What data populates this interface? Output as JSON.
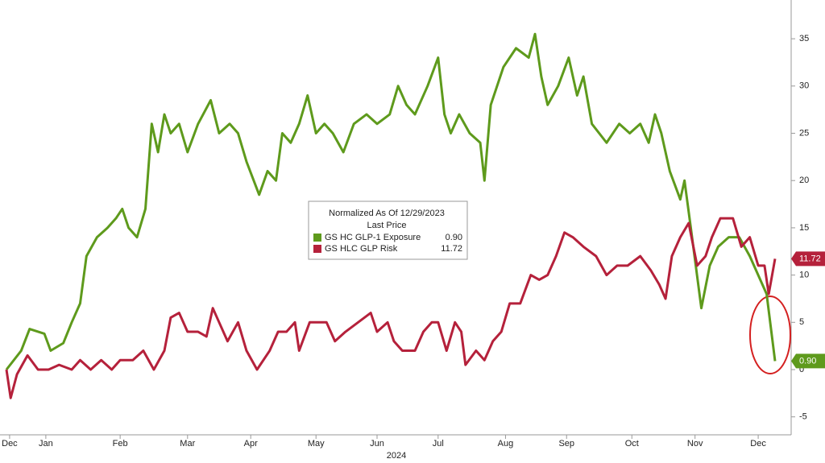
{
  "chart_data": {
    "type": "line",
    "legend_title": "Normalized As Of 12/29/2023",
    "legend_subtitle": "Last Price",
    "xlabel": "2024",
    "xlim": [
      0,
      365
    ],
    "xticks": [
      {
        "value": 1.5,
        "label": "Dec"
      },
      {
        "value": 18.7,
        "label": "Jan"
      },
      {
        "value": 54,
        "label": "Feb"
      },
      {
        "value": 86,
        "label": "Mar"
      },
      {
        "value": 116,
        "label": "Apr"
      },
      {
        "value": 147,
        "label": "May"
      },
      {
        "value": 176,
        "label": "Jun"
      },
      {
        "value": 205,
        "label": "Jul"
      },
      {
        "value": 237,
        "label": "Aug"
      },
      {
        "value": 266,
        "label": "Sep"
      },
      {
        "value": 297,
        "label": "Oct"
      },
      {
        "value": 327,
        "label": "Nov"
      },
      {
        "value": 357,
        "label": "Dec"
      }
    ],
    "ylim": [
      -6.9,
      39.1
    ],
    "yticks": [
      -5,
      0,
      5,
      10,
      15,
      20,
      25,
      30,
      35
    ],
    "series": [
      {
        "name": "GS HC GLP-1 Exposure",
        "color": "#5e9a1c",
        "last_price": {
          "value": 0.9,
          "label": "0.90"
        },
        "x": [
          0,
          7,
          11,
          18,
          21,
          27,
          31,
          35,
          38,
          43,
          48,
          52,
          55,
          58,
          62,
          66,
          69,
          72,
          75,
          78,
          82,
          86,
          91,
          97,
          101,
          106,
          110,
          114,
          120,
          124,
          128,
          131,
          135,
          139,
          143,
          147,
          151,
          155,
          160,
          165,
          171,
          176,
          182,
          186,
          190,
          194,
          200,
          205,
          208,
          211,
          215,
          220,
          225,
          227,
          230,
          236,
          242,
          248,
          251,
          254,
          257,
          262,
          267,
          271,
          274,
          278,
          285,
          291,
          296,
          301,
          305,
          308,
          311,
          315,
          320,
          322,
          325,
          330,
          334,
          338,
          343,
          348,
          353,
          357,
          361,
          365
        ],
        "values": [
          0,
          2,
          4.3,
          3.8,
          2,
          2.8,
          5,
          7,
          12,
          14,
          15,
          16,
          17,
          15,
          14,
          17,
          26,
          23,
          27,
          25,
          26,
          23,
          26,
          28.5,
          25,
          26,
          25,
          22,
          18.5,
          21,
          20,
          25,
          24,
          26,
          29,
          25,
          26,
          25,
          23,
          26,
          27,
          26,
          27,
          30,
          28,
          27,
          30,
          33,
          27,
          25,
          27,
          25,
          24,
          20,
          28,
          32,
          34,
          33,
          35.5,
          31,
          28,
          30,
          33,
          29,
          31,
          26,
          24,
          26,
          25,
          26,
          24,
          27,
          25,
          21,
          18,
          20,
          15,
          6.5,
          11,
          13,
          14,
          14,
          12,
          10,
          8,
          0.9
        ]
      },
      {
        "name": "GS HLC GLP Risk",
        "color": "#b5213b",
        "last_price": {
          "value": 11.72,
          "label": "11.72"
        },
        "x": [
          0,
          2,
          5,
          10,
          15,
          20,
          25,
          31,
          35,
          40,
          45,
          50,
          54,
          60,
          65,
          70,
          75,
          78,
          82,
          86,
          91,
          95,
          98,
          101,
          105,
          110,
          114,
          119,
          125,
          129,
          133,
          137,
          139,
          144,
          148,
          152,
          156,
          161,
          167,
          173,
          176,
          181,
          184,
          188,
          194,
          198,
          202,
          205,
          209,
          213,
          216,
          218,
          223,
          227,
          231,
          235,
          239,
          244,
          249,
          253,
          257,
          261,
          265,
          269,
          274,
          280,
          285,
          290,
          295,
          301,
          306,
          310,
          313,
          316,
          320,
          324,
          328,
          332,
          335,
          339,
          345,
          349,
          353,
          357,
          360,
          362,
          365
        ],
        "values": [
          0,
          -3,
          -0.5,
          1.5,
          0,
          0,
          0.5,
          0,
          1,
          0,
          1,
          0,
          1,
          1,
          2,
          0,
          2,
          5.5,
          6,
          4,
          4,
          3.5,
          6.5,
          5,
          3,
          5,
          2,
          0,
          2,
          4,
          4,
          5,
          2,
          5,
          5,
          5,
          3,
          4,
          5,
          6,
          4,
          5,
          3,
          2,
          2,
          4,
          5,
          5,
          2,
          5,
          4,
          0.5,
          2,
          1,
          3,
          4,
          7,
          7,
          10,
          9.5,
          10,
          12,
          14.5,
          14,
          13,
          12,
          10,
          11,
          11,
          12,
          10.5,
          9,
          7.5,
          12,
          14,
          15.5,
          11,
          12,
          14,
          16,
          16,
          13,
          14,
          11,
          11,
          8,
          11.72
        ]
      }
    ]
  }
}
